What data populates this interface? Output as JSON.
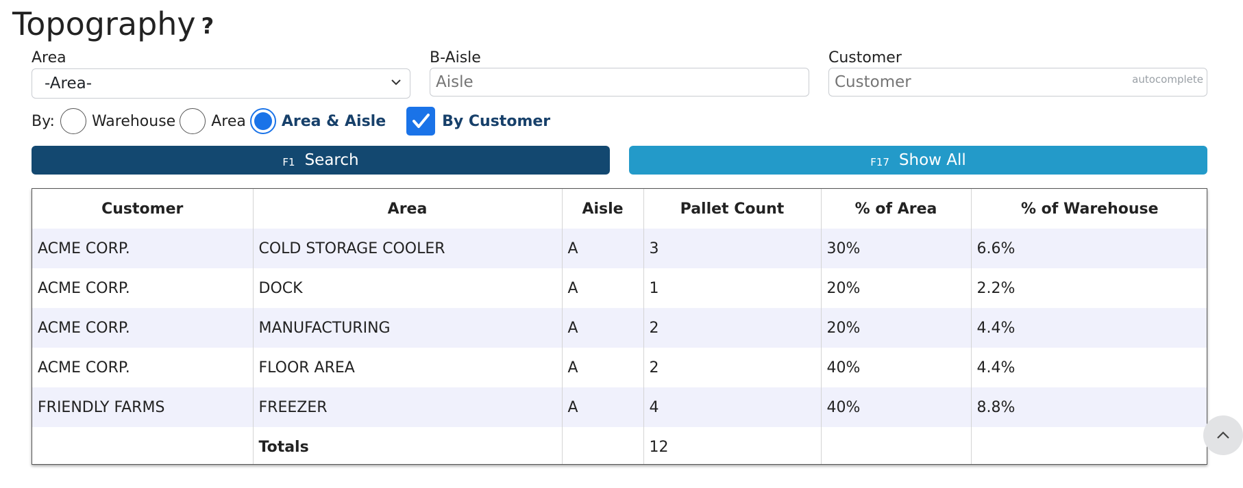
{
  "page": {
    "title": "Topography",
    "help": "?"
  },
  "filters": {
    "area": {
      "label": "Area",
      "value": "-Area-"
    },
    "aisle": {
      "label": "B-Aisle",
      "placeholder": "Aisle"
    },
    "customer": {
      "label": "Customer",
      "placeholder": "Customer",
      "hint": "autocomplete"
    }
  },
  "by": {
    "label": "By:",
    "options": [
      "Warehouse",
      "Area",
      "Area & Aisle"
    ],
    "selected": "Area & Aisle",
    "checkbox": {
      "label": "By Customer",
      "checked": true
    }
  },
  "buttons": {
    "search": {
      "key": "F1",
      "label": "Search"
    },
    "show_all": {
      "key": "F17",
      "label": "Show All"
    }
  },
  "table": {
    "columns": [
      "Customer",
      "Area",
      "Aisle",
      "Pallet Count",
      "% of Area",
      "% of Warehouse"
    ],
    "rows": [
      [
        "ACME CORP.",
        "COLD STORAGE COOLER",
        "A",
        "3",
        "30%",
        "6.6%"
      ],
      [
        "ACME CORP.",
        "DOCK",
        "A",
        "1",
        "20%",
        "2.2%"
      ],
      [
        "ACME CORP.",
        "MANUFACTURING",
        "A",
        "2",
        "20%",
        "4.4%"
      ],
      [
        "ACME CORP.",
        "FLOOR AREA",
        "A",
        "2",
        "40%",
        "4.4%"
      ],
      [
        "FRIENDLY FARMS",
        "FREEZER",
        "A",
        "4",
        "40%",
        "8.8%"
      ]
    ],
    "totals": {
      "label": "Totals",
      "pallet_count": "12"
    }
  },
  "icons": {
    "help": "question-mark-icon",
    "dropdown": "chevron-down-icon",
    "scroll_top": "chevron-up-icon",
    "check": "checkmark-icon"
  },
  "colors": {
    "primary": "#134870",
    "secondary": "#239ac9",
    "accent": "#1a73e8",
    "row_stripe": "#f0f1fc"
  }
}
